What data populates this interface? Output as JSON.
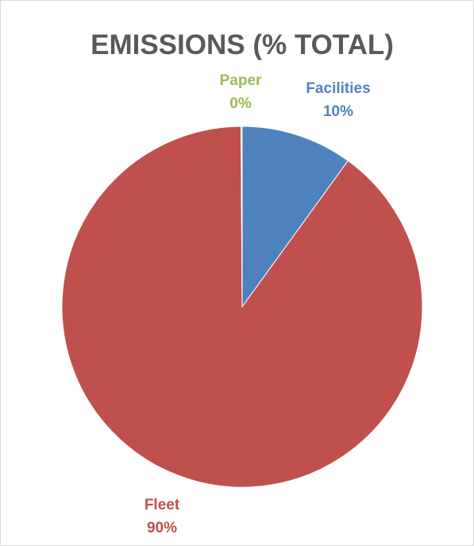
{
  "chart_data": {
    "type": "pie",
    "title": "EMISSIONS (% TOTAL)",
    "slices": [
      {
        "name": "Facilities",
        "value": 10,
        "label": "10%",
        "color": "#4f81bd"
      },
      {
        "name": "Fleet",
        "value": 90,
        "label": "90%",
        "color": "#c0504d"
      },
      {
        "name": "Paper",
        "value": 0.1,
        "label": "0%",
        "color": "#9bbb59"
      }
    ],
    "legend": "none"
  }
}
